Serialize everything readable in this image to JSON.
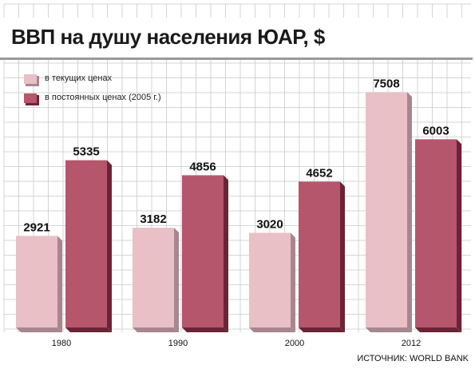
{
  "chart_data": {
    "type": "bar",
    "title": "ВВП на душу населения ЮАР, $",
    "categories": [
      "1980",
      "1990",
      "2000",
      "2012"
    ],
    "series": [
      {
        "name": "в текущих ценах",
        "values": [
          2921,
          3182,
          3020,
          7508
        ]
      },
      {
        "name": "в постоянных ценах (2005 г.)",
        "values": [
          5335,
          4856,
          4652,
          6003
        ]
      }
    ],
    "ylim": [
      0,
      8000
    ],
    "grid": true,
    "legend": "top-left",
    "data_labels": true
  },
  "colors": {
    "current": "#e8c0c6",
    "current_side": "#a8868d",
    "constant": "#b5566d",
    "constant_side": "#6c2336",
    "grid": "#c9c9c9",
    "text": "#111111"
  },
  "source": "ИСТОЧНИК: WORLD BANK"
}
